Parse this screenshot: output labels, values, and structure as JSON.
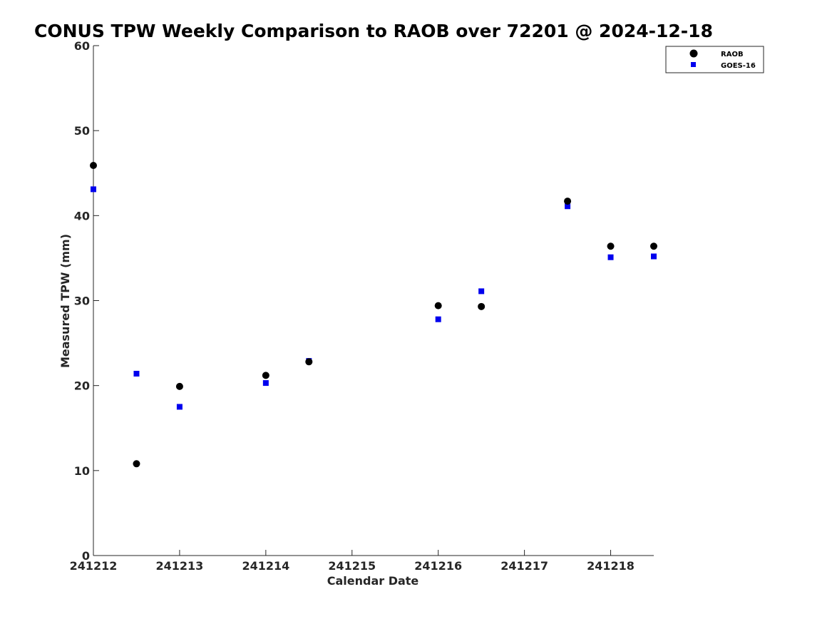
{
  "chart_data": {
    "type": "scatter",
    "title": "CONUS TPW Weekly Comparison to RAOB over 72201 @ 2024-12-18",
    "xlabel": "Calendar Date",
    "ylabel": "Measured TPW (mm)",
    "xlim": [
      241212,
      241218.5
    ],
    "ylim": [
      0,
      60
    ],
    "x_ticks": [
      241212,
      241213,
      241214,
      241215,
      241216,
      241217,
      241218
    ],
    "x_tick_labels": [
      "241212",
      "241213",
      "241214",
      "241215",
      "241216",
      "241217",
      "241218"
    ],
    "y_ticks": [
      0,
      10,
      20,
      30,
      40,
      50,
      60
    ],
    "y_tick_labels": [
      "0",
      "10",
      "20",
      "30",
      "40",
      "50",
      "60"
    ],
    "grid": false,
    "legend_position": "top-right",
    "series": [
      {
        "name": "RAOB",
        "marker": "circle",
        "color": "#000000",
        "x": [
          241212,
          241212.5,
          241213,
          241214,
          241214.5,
          241216,
          241216.5,
          241217.5,
          241218,
          241218.5
        ],
        "y": [
          45.9,
          10.8,
          19.9,
          21.2,
          22.8,
          29.4,
          29.3,
          41.7,
          36.4,
          36.4
        ]
      },
      {
        "name": "GOES-16",
        "marker": "square",
        "color": "#0000ee",
        "x": [
          241212,
          241212.5,
          241213,
          241214,
          241214.5,
          241216,
          241216.5,
          241217.5,
          241218,
          241218.5
        ],
        "y": [
          43.1,
          21.4,
          17.5,
          20.3,
          22.9,
          27.8,
          31.1,
          41.1,
          35.1,
          35.2
        ]
      }
    ]
  }
}
